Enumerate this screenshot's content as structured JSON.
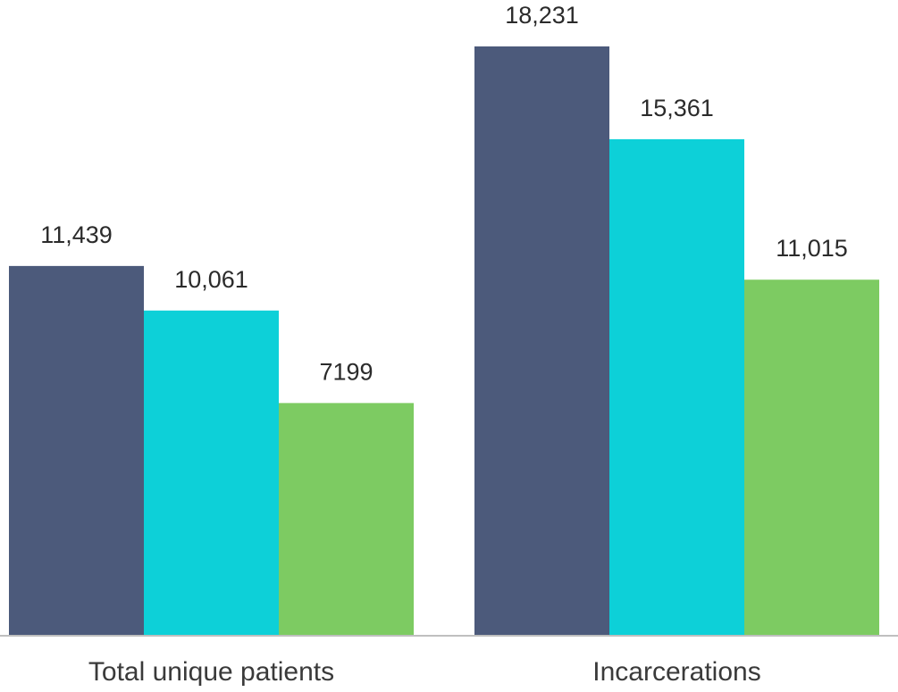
{
  "chart_data": {
    "type": "bar",
    "categories": [
      "Total unique patients",
      "Incarcerations"
    ],
    "series": [
      {
        "values": [
          11439,
          18231
        ],
        "labels": [
          "11,439",
          "18,231"
        ],
        "color": "#4c5a7b"
      },
      {
        "values": [
          10061,
          15361
        ],
        "labels": [
          "10,061",
          "15,361"
        ],
        "color": "#0dd0d8"
      },
      {
        "values": [
          7199,
          11015
        ],
        "labels": [
          "7199",
          "11,015"
        ],
        "color": "#7dcb62"
      }
    ],
    "title": "",
    "xlabel": "",
    "ylabel": "",
    "ylim": [
      0,
      20000
    ],
    "grid": false,
    "axis_color": "#bfbfbf"
  }
}
